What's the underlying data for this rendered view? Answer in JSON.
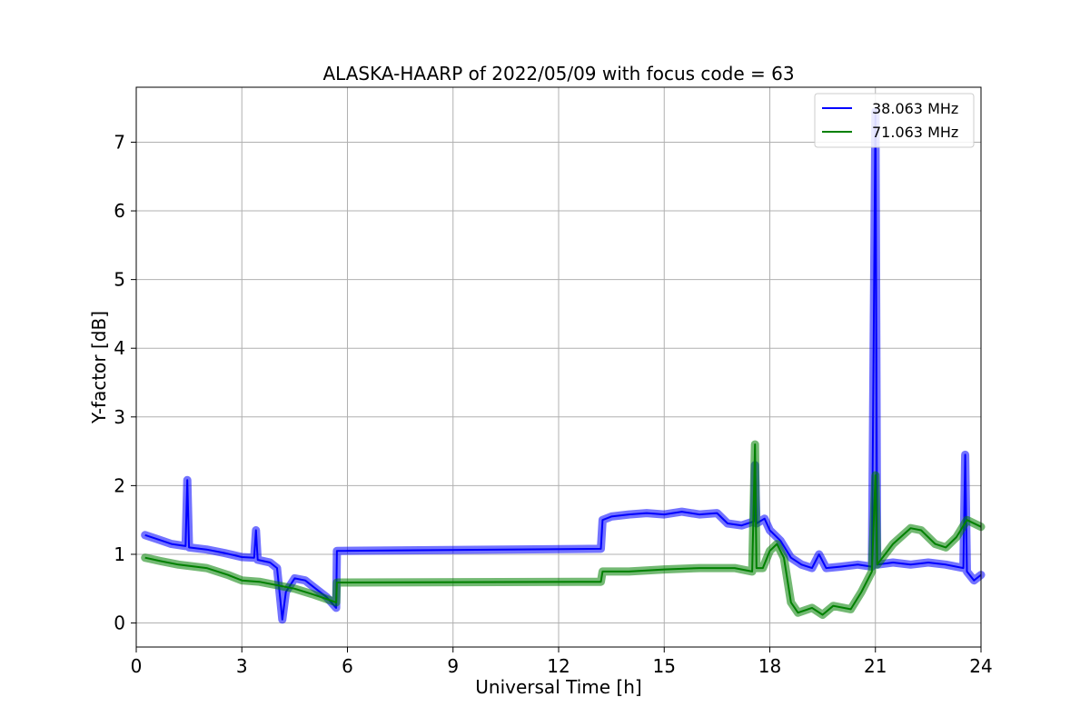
{
  "chart_data": {
    "type": "line",
    "title": "ALASKA-HAARP of 2022/05/09 with focus code = 63",
    "xlabel": "Universal Time [h]",
    "ylabel": "Y-factor [dB]",
    "xlim": [
      0,
      24
    ],
    "ylim": [
      -0.35,
      7.8
    ],
    "xticks": [
      0,
      3,
      6,
      9,
      12,
      15,
      18,
      21,
      24
    ],
    "yticks": [
      0,
      1,
      2,
      3,
      4,
      5,
      6,
      7
    ],
    "grid": true,
    "legend_position": "top-right",
    "series": [
      {
        "name": "38.063 MHz",
        "color": "#0000ff",
        "points": [
          [
            0.25,
            1.28
          ],
          [
            0.6,
            1.22
          ],
          [
            1.0,
            1.15
          ],
          [
            1.4,
            1.12
          ],
          [
            1.45,
            2.08
          ],
          [
            1.5,
            1.1
          ],
          [
            2.0,
            1.07
          ],
          [
            2.5,
            1.02
          ],
          [
            3.0,
            0.96
          ],
          [
            3.35,
            0.95
          ],
          [
            3.4,
            1.35
          ],
          [
            3.45,
            0.92
          ],
          [
            3.8,
            0.88
          ],
          [
            4.0,
            0.8
          ],
          [
            4.1,
            0.3
          ],
          [
            4.15,
            0.05
          ],
          [
            4.25,
            0.45
          ],
          [
            4.5,
            0.65
          ],
          [
            4.8,
            0.62
          ],
          [
            5.1,
            0.5
          ],
          [
            5.4,
            0.38
          ],
          [
            5.68,
            0.22
          ],
          [
            5.7,
            1.05
          ],
          [
            13.2,
            1.08
          ],
          [
            13.25,
            1.5
          ],
          [
            13.5,
            1.55
          ],
          [
            14.0,
            1.58
          ],
          [
            14.5,
            1.6
          ],
          [
            15.0,
            1.58
          ],
          [
            15.5,
            1.62
          ],
          [
            16.0,
            1.58
          ],
          [
            16.5,
            1.6
          ],
          [
            16.8,
            1.45
          ],
          [
            17.2,
            1.42
          ],
          [
            17.55,
            1.48
          ],
          [
            17.58,
            2.3
          ],
          [
            17.62,
            1.45
          ],
          [
            17.85,
            1.52
          ],
          [
            18.0,
            1.35
          ],
          [
            18.3,
            1.2
          ],
          [
            18.6,
            0.95
          ],
          [
            18.9,
            0.85
          ],
          [
            19.2,
            0.8
          ],
          [
            19.4,
            1.0
          ],
          [
            19.6,
            0.8
          ],
          [
            20.0,
            0.82
          ],
          [
            20.5,
            0.85
          ],
          [
            20.9,
            0.82
          ],
          [
            21.0,
            7.45
          ],
          [
            21.05,
            0.85
          ],
          [
            21.5,
            0.88
          ],
          [
            22.0,
            0.85
          ],
          [
            22.5,
            0.88
          ],
          [
            23.0,
            0.85
          ],
          [
            23.5,
            0.8
          ],
          [
            23.55,
            2.45
          ],
          [
            23.6,
            0.75
          ],
          [
            23.8,
            0.62
          ],
          [
            24.0,
            0.7
          ]
        ]
      },
      {
        "name": "71.063 MHz",
        "color": "#008000",
        "points": [
          [
            0.25,
            0.95
          ],
          [
            0.7,
            0.9
          ],
          [
            1.2,
            0.85
          ],
          [
            2.0,
            0.8
          ],
          [
            2.6,
            0.7
          ],
          [
            3.0,
            0.62
          ],
          [
            3.5,
            0.6
          ],
          [
            4.0,
            0.55
          ],
          [
            4.5,
            0.5
          ],
          [
            5.0,
            0.42
          ],
          [
            5.4,
            0.35
          ],
          [
            5.68,
            0.3
          ],
          [
            5.7,
            0.59
          ],
          [
            13.2,
            0.6
          ],
          [
            13.25,
            0.75
          ],
          [
            14.0,
            0.75
          ],
          [
            15.0,
            0.78
          ],
          [
            16.0,
            0.8
          ],
          [
            17.0,
            0.8
          ],
          [
            17.5,
            0.75
          ],
          [
            17.58,
            2.6
          ],
          [
            17.62,
            0.8
          ],
          [
            17.8,
            0.8
          ],
          [
            18.0,
            1.05
          ],
          [
            18.2,
            1.15
          ],
          [
            18.4,
            0.95
          ],
          [
            18.6,
            0.3
          ],
          [
            18.8,
            0.15
          ],
          [
            19.2,
            0.22
          ],
          [
            19.5,
            0.12
          ],
          [
            19.8,
            0.25
          ],
          [
            20.3,
            0.2
          ],
          [
            20.6,
            0.45
          ],
          [
            20.9,
            0.75
          ],
          [
            21.0,
            2.15
          ],
          [
            21.05,
            0.85
          ],
          [
            21.5,
            1.15
          ],
          [
            22.0,
            1.38
          ],
          [
            22.3,
            1.35
          ],
          [
            22.7,
            1.15
          ],
          [
            23.0,
            1.1
          ],
          [
            23.3,
            1.25
          ],
          [
            23.6,
            1.5
          ],
          [
            24.0,
            1.4
          ]
        ]
      }
    ]
  }
}
